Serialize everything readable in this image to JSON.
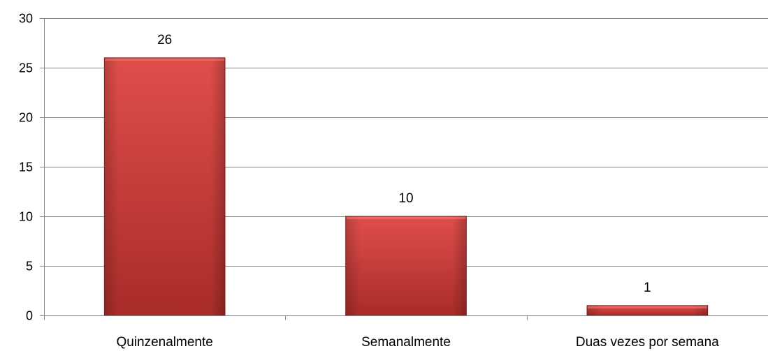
{
  "chart_data": {
    "type": "bar",
    "categories": [
      "Quinzenalmente",
      "Semanalmente",
      "Duas vezes por semana"
    ],
    "values": [
      26,
      10,
      1
    ],
    "data_labels": [
      "26",
      "10",
      "1"
    ],
    "title": "",
    "xlabel": "",
    "ylabel": "",
    "ylim": [
      0,
      30
    ],
    "yticks": [
      "0",
      "5",
      "10",
      "15",
      "20",
      "25",
      "30"
    ],
    "grid": true,
    "legend": "none",
    "bar_color": "#d23b38",
    "bar_color_light": "#e04e4a",
    "bar_color_dark": "#9e2a27"
  }
}
